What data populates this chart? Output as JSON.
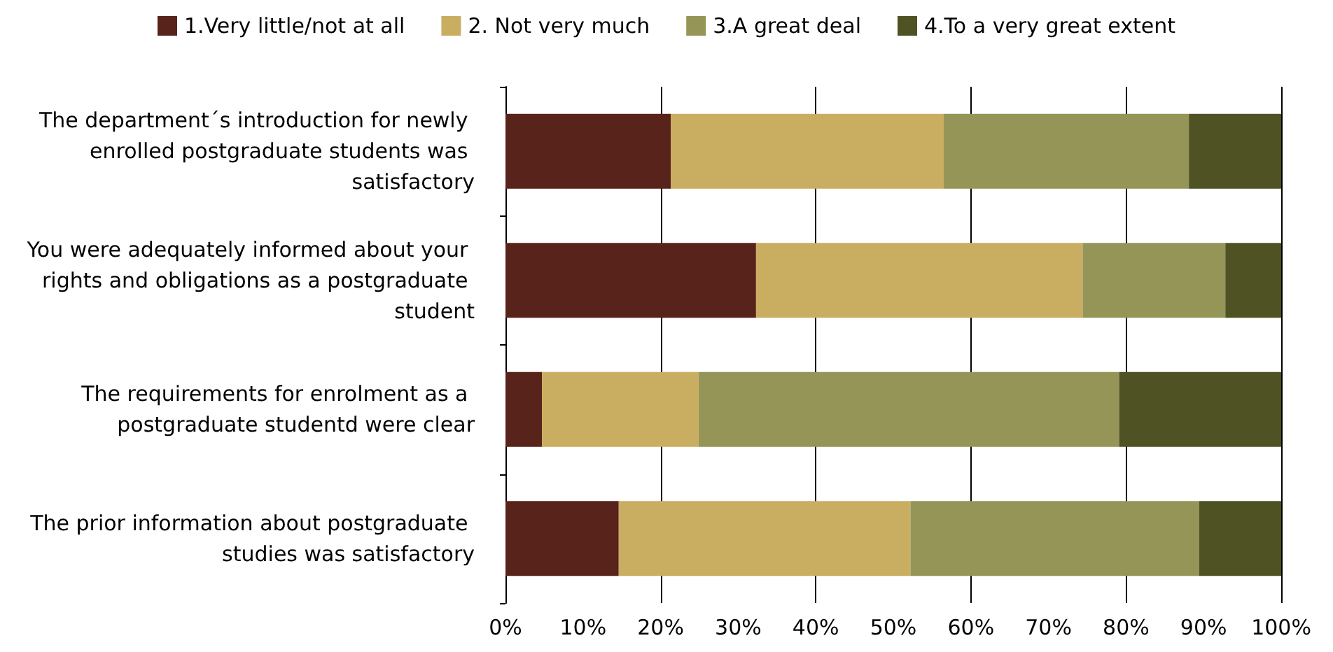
{
  "chart_data": {
    "type": "bar",
    "orientation": "horizontal",
    "stacked": true,
    "categories": [
      "The department´s introduction for newly enrolled postgraduate students was satisfactory",
      "You were adequately informed about your rights and obligations as a postgraduate student",
      "The requirements for enrolment as a postgraduate studentd were clear",
      "The prior information about postgraduate studies was satisfactory"
    ],
    "series": [
      {
        "name": "1.Very little/not at all",
        "color": "#58231a",
        "values": [
          21.3,
          32.3,
          4.7,
          14.6
        ]
      },
      {
        "name": "2. Not very much",
        "color": "#c9ae62",
        "values": [
          35.2,
          42.1,
          20.2,
          37.6
        ]
      },
      {
        "name": "3.A great deal",
        "color": "#959557",
        "values": [
          31.6,
          18.4,
          54.2,
          37.2
        ]
      },
      {
        "name": "4.To a very great extent",
        "color": "#4f5222",
        "values": [
          11.9,
          7.2,
          20.9,
          10.6
        ]
      }
    ],
    "xlim": [
      0,
      100
    ],
    "xticks": [
      {
        "value": 0,
        "label": "0%"
      },
      {
        "value": 10,
        "label": "10%"
      },
      {
        "value": 20,
        "label": "20%"
      },
      {
        "value": 30,
        "label": "30%"
      },
      {
        "value": 40,
        "label": "40%"
      },
      {
        "value": 50,
        "label": "50%"
      },
      {
        "value": 60,
        "label": "60%"
      },
      {
        "value": 70,
        "label": "70%"
      },
      {
        "value": 80,
        "label": "80%"
      },
      {
        "value": 90,
        "label": "90%"
      },
      {
        "value": 100,
        "label": "100%"
      }
    ],
    "grid": "x",
    "legend": "top"
  }
}
